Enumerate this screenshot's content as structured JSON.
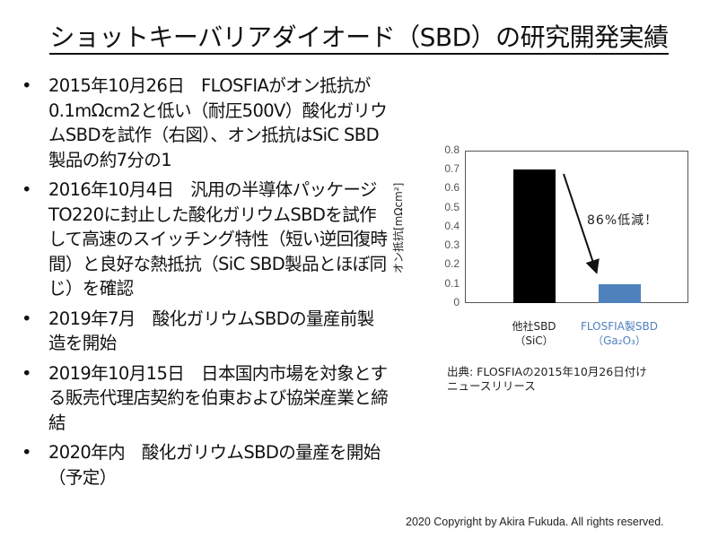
{
  "title": "ショットキーバリアダイオード（SBD）の研究開発実績",
  "bullets": [
    {
      "bullet": "•",
      "text": "2015年10月26日　FLOSFIAがオン抵抗が0.1mΩcm2と低い（耐圧500V）酸化ガリウムSBDを試作（右図）、オン抵抗はSiC SBD製品の約7分の1"
    },
    {
      "bullet": "•",
      "text": "2016年10月4日　汎用の半導体パッケージTO220に封止した酸化ガリウムSBDを試作して高速のスイッチング特性（短い逆回復時間）と良好な熱抵抗（SiC SBD製品とほぼ同じ）を確認"
    },
    {
      "bullet": "•",
      "text": "2019年7月　酸化ガリウムSBDの量産前製造を開始"
    },
    {
      "bullet": "•",
      "text": "2019年10月15日　日本国内市場を対象とする販売代理店契約を伯東および協栄産業と締結"
    },
    {
      "bullet": "•",
      "text": "2020年内　酸化ガリウムSBDの量産を開始（予定）"
    }
  ],
  "chart_data": {
    "type": "bar",
    "title": "",
    "categories": [
      "他社SBD（SiC）",
      "FLOSFIA製SBD（Ga2O3）"
    ],
    "category_lines": [
      [
        "他社SBD",
        "（SiC）"
      ],
      [
        "FLOSFIA製SBD",
        "（Ga₂O₃）"
      ]
    ],
    "values": [
      0.7,
      0.1
    ],
    "colors": [
      "#000000",
      "#4f81bd"
    ],
    "xlabel": "",
    "ylabel": "オン抵抗[mΩcm²]",
    "ylim": [
      0,
      0.8
    ],
    "yticks": [
      "0.8",
      "0.7",
      "0.6",
      "0.5",
      "0.4",
      "0.3",
      "0.2",
      "0.1",
      "0"
    ],
    "grid": false,
    "legend": null,
    "annotation": "86%低減！"
  },
  "source": {
    "line1": "出典: FLOSFIAの2015年10月26日付け",
    "line2": "ニュースリリース"
  },
  "copyright": "2020 Copyright by Akira Fukuda. All rights reserved."
}
